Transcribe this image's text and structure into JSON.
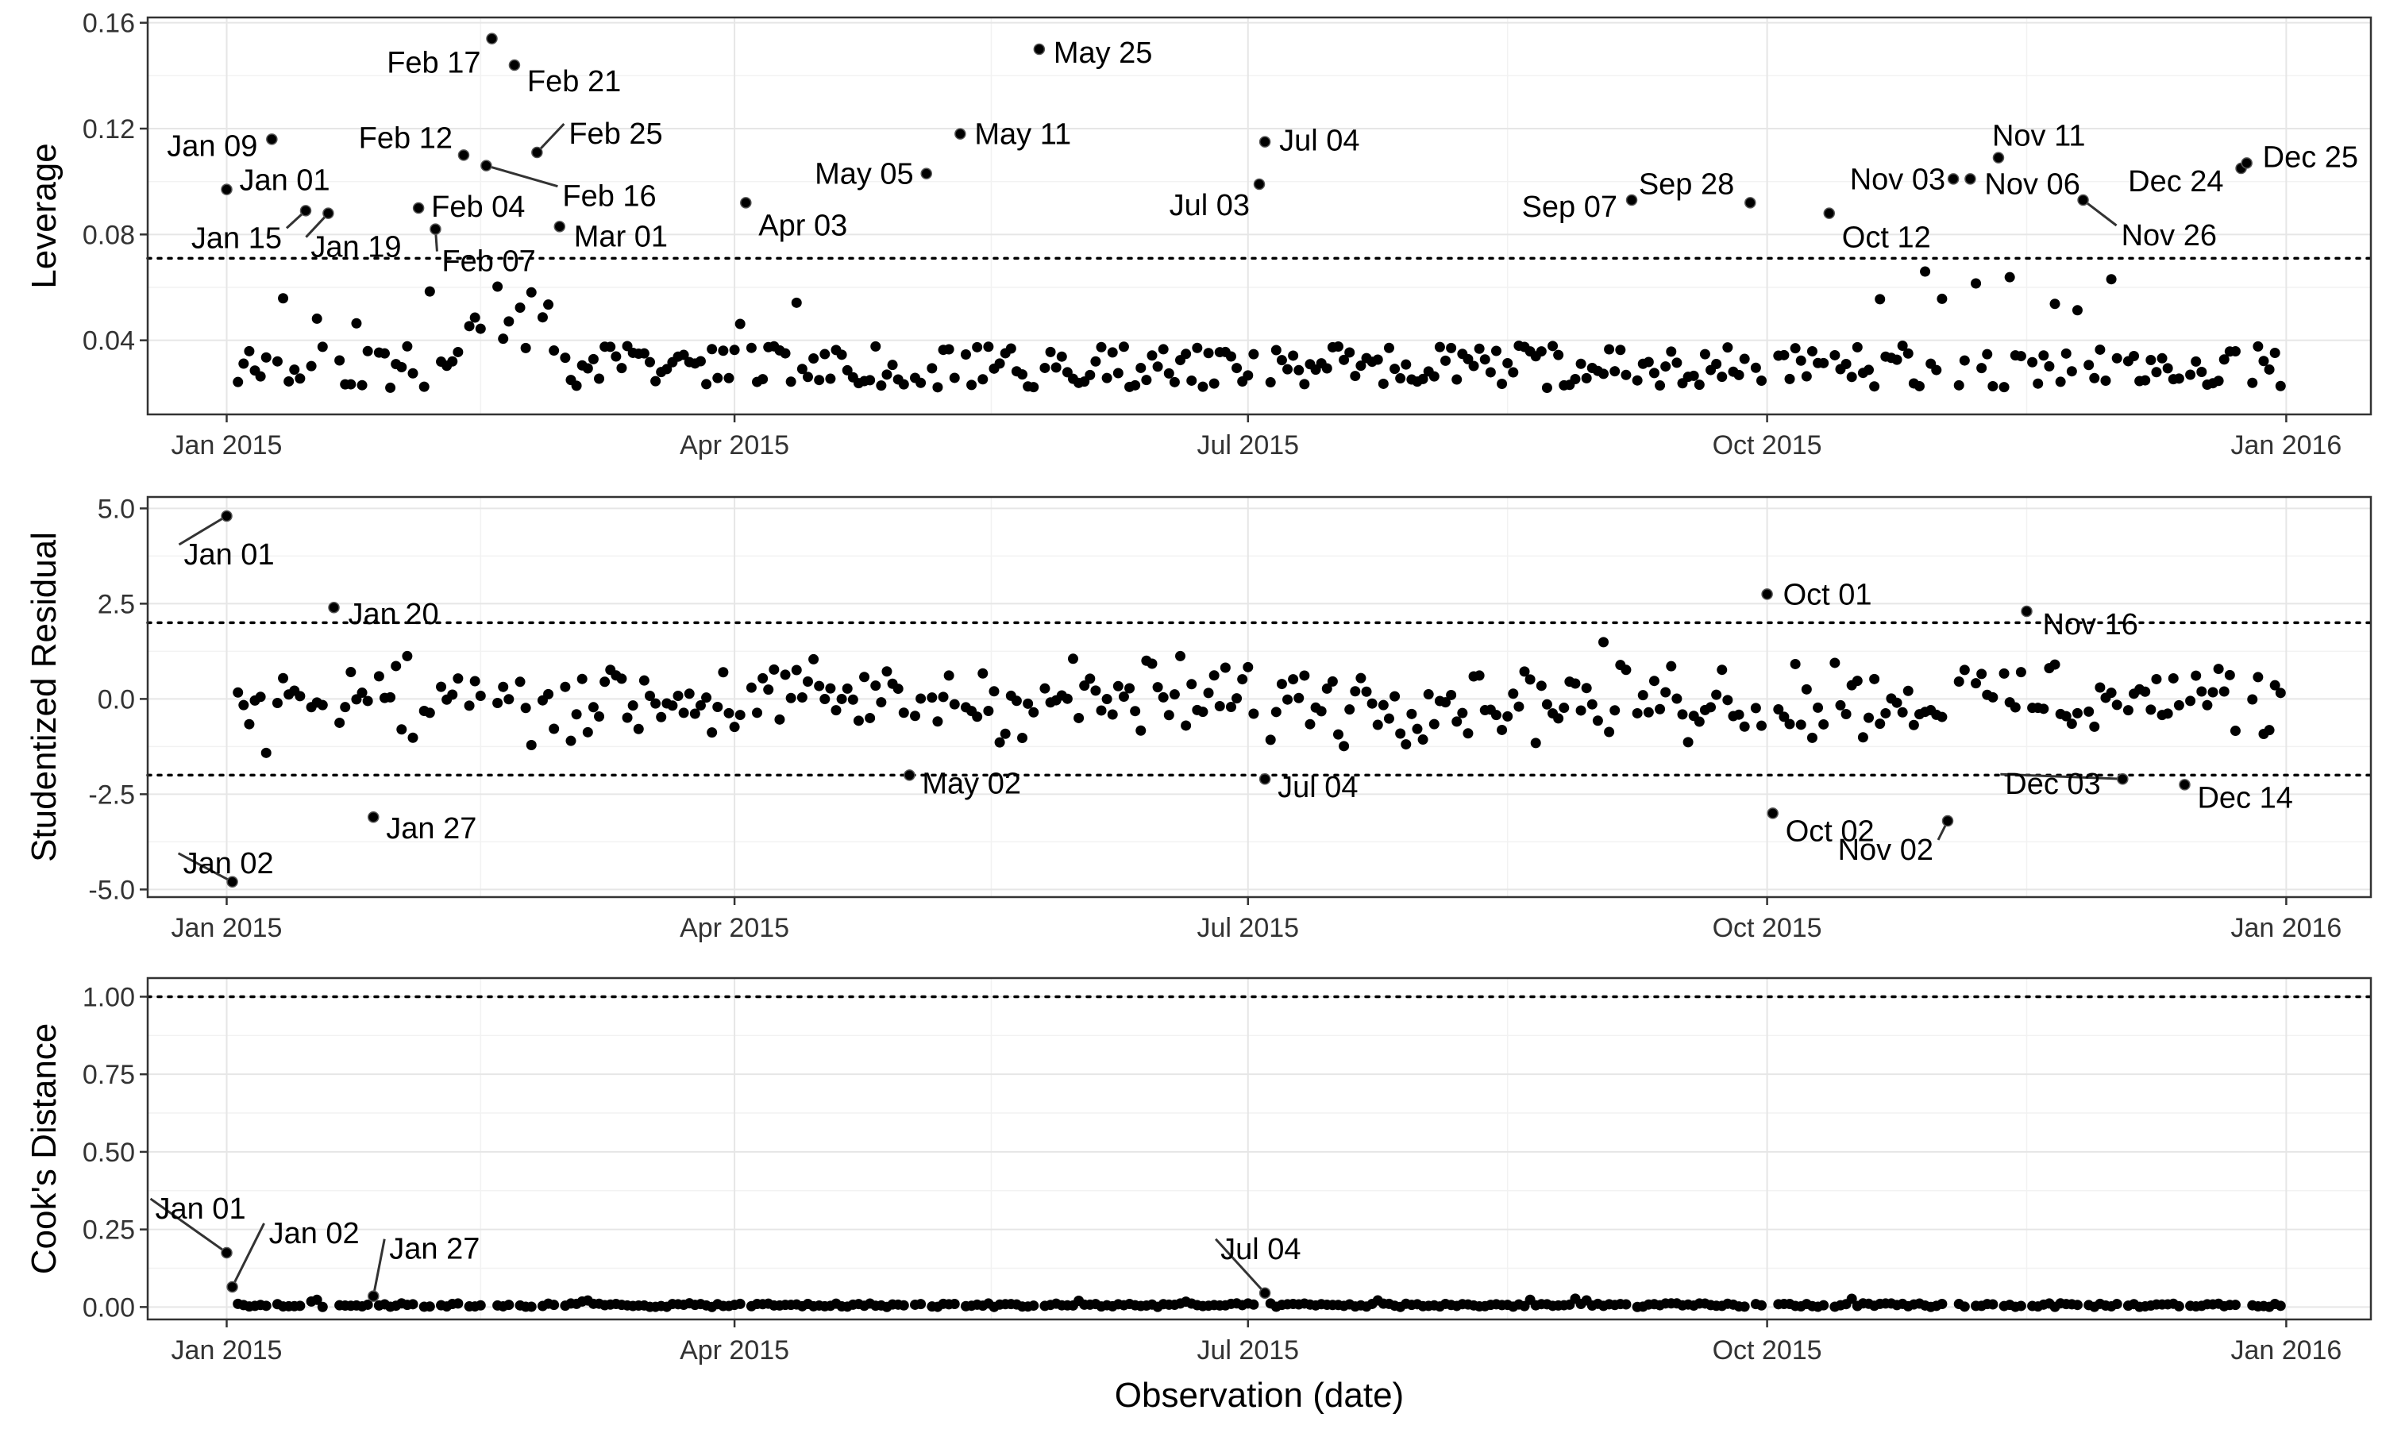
{
  "chart_data": [
    {
      "type": "scatter",
      "ylabel": "Leverage",
      "xlabel": "",
      "ylim": [
        0.012,
        0.162
      ],
      "yticks": [
        0.04,
        0.08,
        0.12,
        0.16
      ],
      "ytick_labels": [
        "0.04",
        "0.08",
        "0.12",
        "0.16"
      ],
      "xlim": [
        "2014-12-18",
        "2016-01-16"
      ],
      "xticks": [
        "2015-01-01",
        "2015-04-01",
        "2015-07-01",
        "2015-10-01",
        "2016-01-01"
      ],
      "xtick_labels": [
        "Jan 2015",
        "Apr 2015",
        "Jul 2015",
        "Oct 2015",
        "Jan 2016"
      ],
      "grid": true,
      "hlines": [
        0.071
      ],
      "labeled_points": [
        {
          "date": "2015-01-01",
          "y": 0.097,
          "label": "Jan 01"
        },
        {
          "date": "2015-01-09",
          "y": 0.116,
          "label": "Jan 09"
        },
        {
          "date": "2015-01-15",
          "y": 0.089,
          "label": "Jan 15"
        },
        {
          "date": "2015-01-19",
          "y": 0.088,
          "label": "Jan 19"
        },
        {
          "date": "2015-02-04",
          "y": 0.09,
          "label": "Feb 04"
        },
        {
          "date": "2015-02-07",
          "y": 0.082,
          "label": "Feb 07"
        },
        {
          "date": "2015-02-12",
          "y": 0.11,
          "label": "Feb 12"
        },
        {
          "date": "2015-02-16",
          "y": 0.106,
          "label": "Feb 16"
        },
        {
          "date": "2015-02-17",
          "y": 0.154,
          "label": "Feb 17"
        },
        {
          "date": "2015-02-21",
          "y": 0.144,
          "label": "Feb 21"
        },
        {
          "date": "2015-02-25",
          "y": 0.111,
          "label": "Feb 25"
        },
        {
          "date": "2015-03-01",
          "y": 0.083,
          "label": "Mar 01"
        },
        {
          "date": "2015-04-03",
          "y": 0.092,
          "label": "Apr 03"
        },
        {
          "date": "2015-05-05",
          "y": 0.103,
          "label": "May 05"
        },
        {
          "date": "2015-05-11",
          "y": 0.118,
          "label": "May 11"
        },
        {
          "date": "2015-05-25",
          "y": 0.15,
          "label": "May 25"
        },
        {
          "date": "2015-07-03",
          "y": 0.099,
          "label": "Jul 03"
        },
        {
          "date": "2015-07-04",
          "y": 0.115,
          "label": "Jul 04"
        },
        {
          "date": "2015-09-07",
          "y": 0.093,
          "label": "Sep 07"
        },
        {
          "date": "2015-09-28",
          "y": 0.092,
          "label": "Sep 28"
        },
        {
          "date": "2015-10-12",
          "y": 0.088,
          "label": "Oct 12"
        },
        {
          "date": "2015-11-03",
          "y": 0.101,
          "label": "Nov 03"
        },
        {
          "date": "2015-11-06",
          "y": 0.101,
          "label": "Nov 06"
        },
        {
          "date": "2015-11-11",
          "y": 0.109,
          "label": "Nov 11"
        },
        {
          "date": "2015-11-26",
          "y": 0.093,
          "label": "Nov 26"
        },
        {
          "date": "2015-12-24",
          "y": 0.105,
          "label": "Dec 24"
        },
        {
          "date": "2015-12-25",
          "y": 0.107,
          "label": "Dec 25"
        }
      ]
    },
    {
      "type": "scatter",
      "ylabel": "Studentized Residual",
      "xlabel": "",
      "ylim": [
        -5.2,
        5.3
      ],
      "yticks": [
        -5,
        -2.5,
        0,
        2.5,
        5
      ],
      "ytick_labels": [
        "-5.0",
        "-2.5",
        "0.0",
        "2.5",
        "5.0"
      ],
      "xlim": [
        "2014-12-18",
        "2016-01-16"
      ],
      "xticks": [
        "2015-01-01",
        "2015-04-01",
        "2015-07-01",
        "2015-10-01",
        "2016-01-01"
      ],
      "xtick_labels": [
        "Jan 2015",
        "Apr 2015",
        "Jul 2015",
        "Oct 2015",
        "Jan 2016"
      ],
      "grid": true,
      "hlines": [
        2,
        -2
      ],
      "labeled_points": [
        {
          "date": "2015-01-01",
          "y": 4.8,
          "label": "Jan 01"
        },
        {
          "date": "2015-01-02",
          "y": -4.8,
          "label": "Jan 02"
        },
        {
          "date": "2015-01-20",
          "y": 2.4,
          "label": "Jan 20"
        },
        {
          "date": "2015-01-27",
          "y": -3.1,
          "label": "Jan 27"
        },
        {
          "date": "2015-05-02",
          "y": -2.0,
          "label": "May 02"
        },
        {
          "date": "2015-07-04",
          "y": -2.1,
          "label": "Jul 04"
        },
        {
          "date": "2015-10-01",
          "y": 2.75,
          "label": "Oct 01"
        },
        {
          "date": "2015-10-02",
          "y": -3.0,
          "label": "Oct 02"
        },
        {
          "date": "2015-11-02",
          "y": -3.2,
          "label": "Nov 02"
        },
        {
          "date": "2015-11-16",
          "y": 2.3,
          "label": "Nov 16"
        },
        {
          "date": "2015-12-03",
          "y": -2.1,
          "label": "Dec 03"
        },
        {
          "date": "2015-12-14",
          "y": -2.25,
          "label": "Dec 14"
        }
      ]
    },
    {
      "type": "scatter",
      "ylabel": "Cook's Distance",
      "xlabel": "Observation (date)",
      "ylim": [
        -0.04,
        1.06
      ],
      "yticks": [
        0,
        0.25,
        0.5,
        0.75,
        1.0
      ],
      "ytick_labels": [
        "0.00",
        "0.25",
        "0.50",
        "0.75",
        "1.00"
      ],
      "xlim": [
        "2014-12-18",
        "2016-01-16"
      ],
      "xticks": [
        "2015-01-01",
        "2015-04-01",
        "2015-07-01",
        "2015-10-01",
        "2016-01-01"
      ],
      "xtick_labels": [
        "Jan 2015",
        "Apr 2015",
        "Jul 2015",
        "Oct 2015",
        "Jan 2016"
      ],
      "grid": true,
      "hlines": [
        1.0
      ],
      "labeled_points": [
        {
          "date": "2015-01-01",
          "y": 0.175,
          "label": "Jan 01"
        },
        {
          "date": "2015-01-02",
          "y": 0.065,
          "label": "Jan 02"
        },
        {
          "date": "2015-01-27",
          "y": 0.035,
          "label": "Jan 27"
        },
        {
          "date": "2015-07-04",
          "y": 0.045,
          "label": "Jul 04"
        }
      ]
    }
  ]
}
